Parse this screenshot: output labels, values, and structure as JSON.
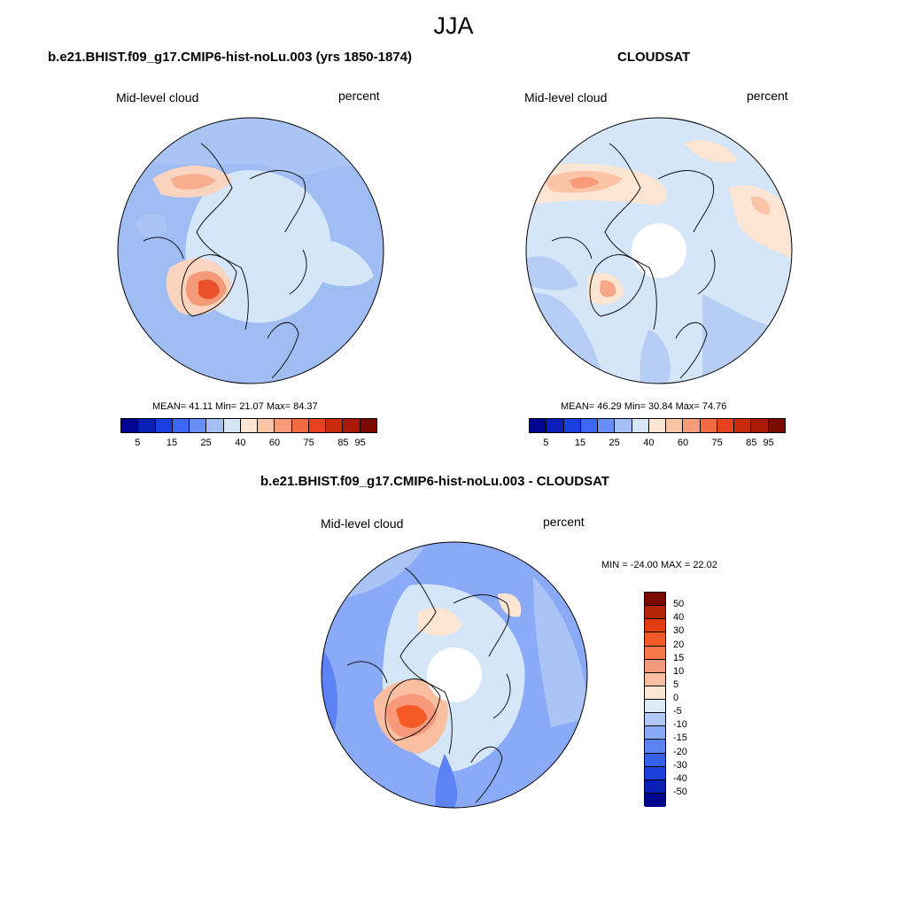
{
  "season": "JJA",
  "panels": [
    {
      "title": "b.e21.BHIST.f09_g17.CMIP6-hist-noLu.003 (yrs 1850-1874)",
      "variable": "Mid-level cloud",
      "units": "percent",
      "stats": "MEAN=  41.11  Min=  21.07  Max=  84.37",
      "mean": 41.11,
      "min": 21.07,
      "max": 84.37
    },
    {
      "title": "CLOUDSAT",
      "variable": "Mid-level cloud",
      "units": "percent",
      "stats": "MEAN=  46.29  Min=  30.84  Max=  74.76",
      "mean": 46.29,
      "min": 30.84,
      "max": 74.76
    },
    {
      "title": "b.e21.BHIST.f09_g17.CMIP6-hist-noLu.003 - CLOUDSAT",
      "variable": "Mid-level cloud",
      "units": "percent",
      "stats": "MIN = -24.00 MAX =  22.02",
      "min": -24.0,
      "max": 22.02
    }
  ],
  "colorbar_abs": {
    "labels": [
      "5",
      "15",
      "25",
      "40",
      "60",
      "75",
      "85",
      "95"
    ],
    "colors": [
      "#00058f",
      "#0a1fb8",
      "#1a3fe0",
      "#3d66f5",
      "#6a8ef7",
      "#a3bff5",
      "#d4e6f7",
      "#fde5d3",
      "#fbc4a6",
      "#f79b78",
      "#f26a43",
      "#e8411f",
      "#c92a0d",
      "#a81a05",
      "#7a0a00"
    ]
  },
  "colorbar_diff": {
    "labels": [
      "50",
      "40",
      "30",
      "20",
      "15",
      "10",
      "5",
      "0",
      "-5",
      "-10",
      "-15",
      "-20",
      "-30",
      "-40",
      "-50"
    ],
    "colors": [
      "#7a0a00",
      "#b52505",
      "#e33b12",
      "#f55a26",
      "#f7774a",
      "#f7997a",
      "#f9bfa0",
      "#fde5d3",
      "#dce9f7",
      "#b0c8f5",
      "#8aaaf7",
      "#5c82f3",
      "#3660ea",
      "#1a3fd8",
      "#0a1fb8",
      "#00058f"
    ]
  }
}
